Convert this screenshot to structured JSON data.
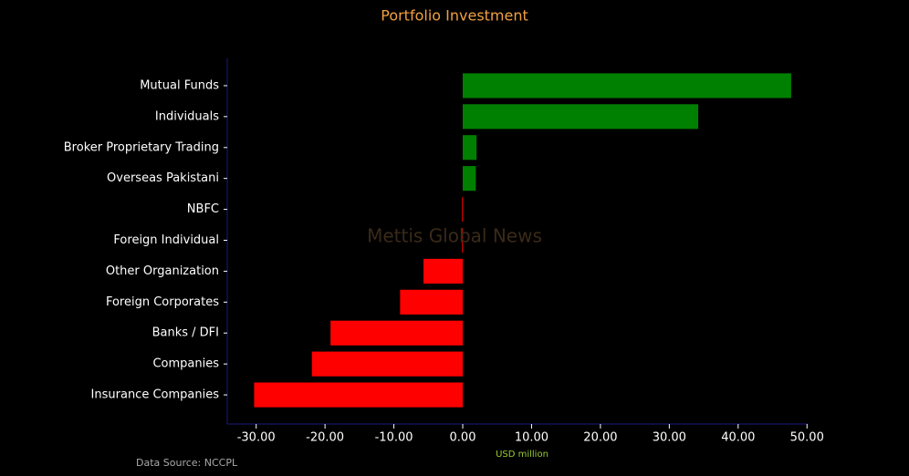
{
  "chart_data": {
    "type": "barh",
    "title": "Portfolio Investment",
    "watermark": "Mettis Global News",
    "xlabel": "USD million",
    "source": "Data Source: NCCPL",
    "categories": [
      "Mutual Funds",
      "Individuals",
      "Broker Proprietary Trading",
      "Overseas Pakistani",
      "NBFC",
      "Foreign Individual",
      "Other Organization",
      "Foreign Corporates ",
      "Banks / DFI",
      "Companies",
      "Insurance Companies"
    ],
    "values": [
      47.7,
      34.2,
      2.0,
      1.9,
      -0.1,
      -0.1,
      -5.7,
      -9.1,
      -19.2,
      -21.9,
      -30.3
    ],
    "colors": [
      "#008000",
      "#008000",
      "#008000",
      "#008000",
      "#ff0000",
      "#ff0000",
      "#ff0000",
      "#ff0000",
      "#ff0000",
      "#ff0000",
      "#ff0000"
    ],
    "xlim": [
      -34.2,
      50.1
    ],
    "xticks": [
      {
        "value": -30,
        "label": "-30.00"
      },
      {
        "value": -20,
        "label": "-20.00"
      },
      {
        "value": -10,
        "label": "-10.00"
      },
      {
        "value": 0,
        "label": "0.00"
      },
      {
        "value": 10,
        "label": "10.00"
      },
      {
        "value": 20,
        "label": "20.00"
      },
      {
        "value": 30,
        "label": "30.00"
      },
      {
        "value": 40,
        "label": "40.00"
      },
      {
        "value": 50,
        "label": "50.00"
      }
    ]
  }
}
